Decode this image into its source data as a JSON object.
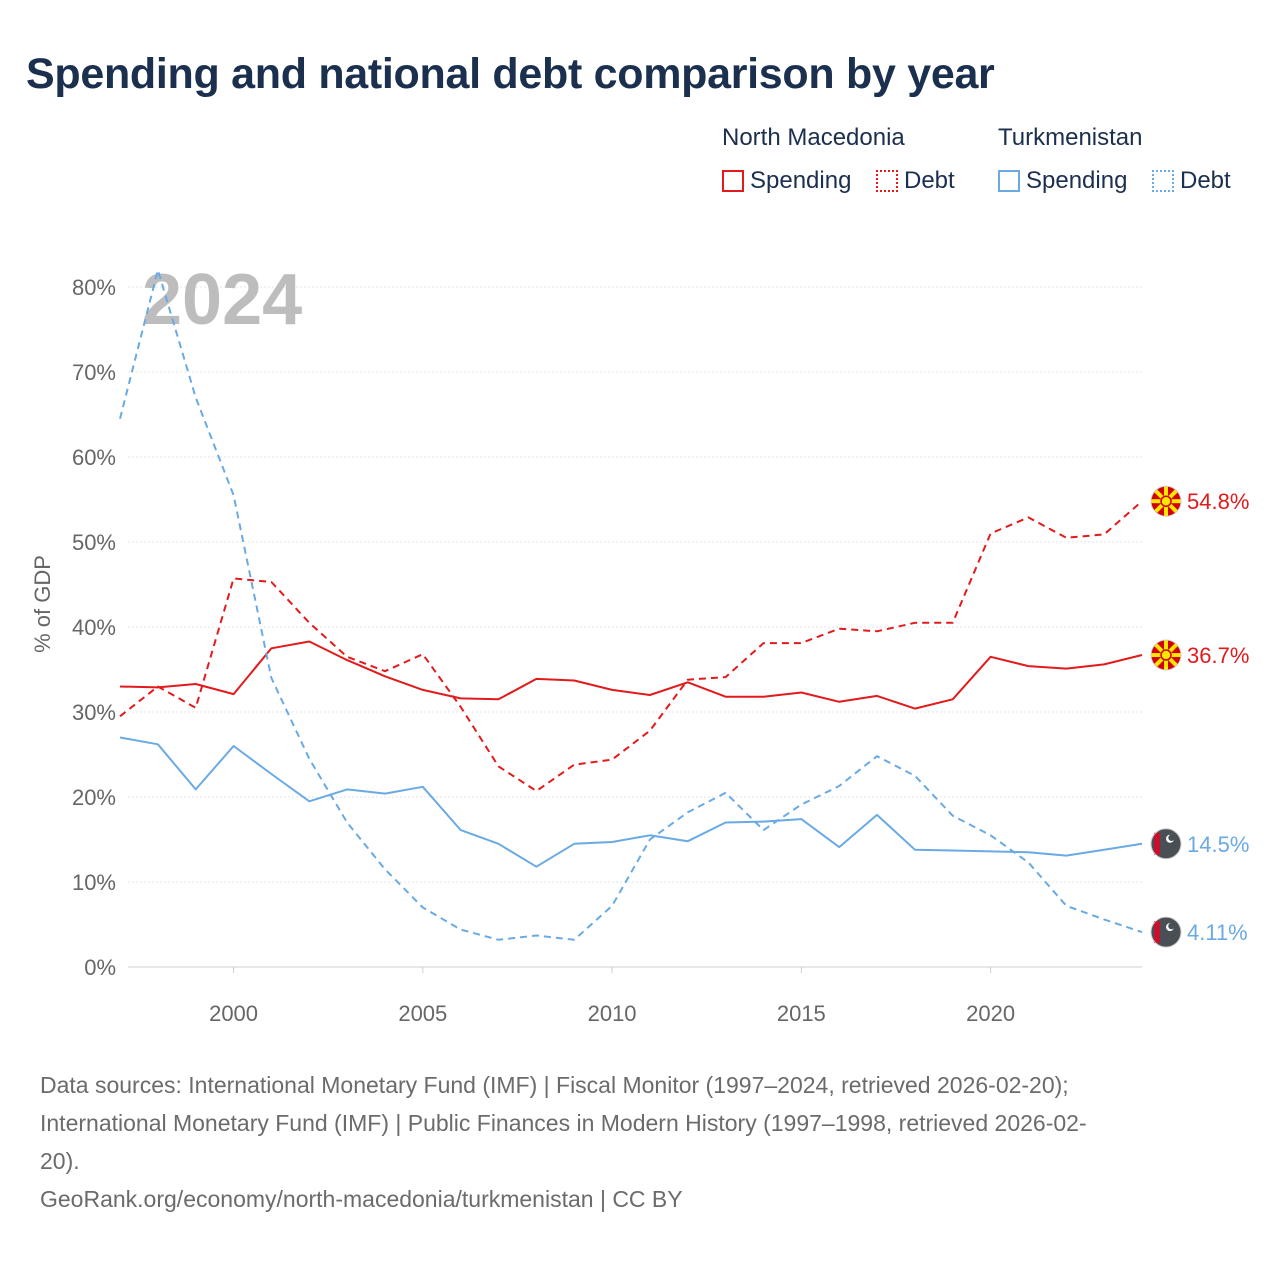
{
  "title": "Spending and national debt comparison by year",
  "legend": {
    "groups": [
      {
        "name": "North Macedonia",
        "color": "#e31a1c",
        "items": [
          {
            "label": "Spending",
            "style": "solid"
          },
          {
            "label": "Debt",
            "style": "dotted"
          }
        ]
      },
      {
        "name": "Turkmenistan",
        "color": "#6aaae4",
        "items": [
          {
            "label": "Spending",
            "style": "solid"
          },
          {
            "label": "Debt",
            "style": "dotted"
          }
        ]
      }
    ]
  },
  "chart_data": {
    "type": "line",
    "year_label": "2024",
    "ylabel": "% of GDP",
    "xlim": [
      1997,
      2024
    ],
    "ylim": [
      0,
      80
    ],
    "yticks": [
      0,
      10,
      20,
      30,
      40,
      50,
      60,
      70,
      80
    ],
    "ytick_labels": [
      "0%",
      "10%",
      "20%",
      "30%",
      "40%",
      "50%",
      "60%",
      "70%",
      "80%"
    ],
    "xticks": [
      2000,
      2005,
      2010,
      2015,
      2020
    ],
    "xtick_labels": [
      "2000",
      "2005",
      "2010",
      "2015",
      "2020"
    ],
    "series": [
      {
        "name": "North Macedonia Spending",
        "country": "North Macedonia",
        "color": "#e31a1c",
        "dash": false,
        "end_label": "36.7%",
        "x": [
          1997,
          1998,
          1999,
          2000,
          2001,
          2002,
          2003,
          2004,
          2005,
          2006,
          2007,
          2008,
          2009,
          2010,
          2011,
          2012,
          2013,
          2014,
          2015,
          2016,
          2017,
          2018,
          2019,
          2020,
          2021,
          2022,
          2023,
          2024
        ],
        "values": [
          33.0,
          32.9,
          33.3,
          32.1,
          37.5,
          38.3,
          36.1,
          34.2,
          32.6,
          31.6,
          31.5,
          33.9,
          33.7,
          32.6,
          32.0,
          33.5,
          31.8,
          31.8,
          32.3,
          31.2,
          31.9,
          30.4,
          31.5,
          36.5,
          35.4,
          35.1,
          35.6,
          36.7
        ]
      },
      {
        "name": "North Macedonia Debt",
        "country": "North Macedonia",
        "color": "#e31a1c",
        "dash": true,
        "end_label": "54.8%",
        "x": [
          1997,
          1998,
          1999,
          2000,
          2001,
          2002,
          2003,
          2004,
          2005,
          2006,
          2007,
          2008,
          2009,
          2010,
          2011,
          2012,
          2013,
          2014,
          2015,
          2016,
          2017,
          2018,
          2019,
          2020,
          2021,
          2022,
          2023,
          2024
        ],
        "values": [
          29.5,
          33.0,
          30.5,
          45.7,
          45.3,
          40.5,
          36.5,
          34.8,
          36.8,
          30.6,
          23.6,
          20.7,
          23.8,
          24.4,
          27.8,
          33.8,
          34.1,
          38.1,
          38.1,
          39.8,
          39.5,
          40.5,
          40.5,
          51.0,
          52.9,
          50.5,
          50.9,
          54.8
        ]
      },
      {
        "name": "Turkmenistan Spending",
        "country": "Turkmenistan",
        "color": "#6aaae4",
        "dash": false,
        "end_label": "14.5%",
        "x": [
          1997,
          1998,
          1999,
          2000,
          2001,
          2002,
          2003,
          2004,
          2005,
          2006,
          2007,
          2008,
          2009,
          2010,
          2011,
          2012,
          2013,
          2014,
          2015,
          2016,
          2017,
          2018,
          2019,
          2020,
          2021,
          2022,
          2023,
          2024
        ],
        "values": [
          27.0,
          26.2,
          20.9,
          26.0,
          22.7,
          19.5,
          20.9,
          20.4,
          21.2,
          16.1,
          14.5,
          11.8,
          14.5,
          14.7,
          15.5,
          14.8,
          17.0,
          17.1,
          17.4,
          14.1,
          17.9,
          13.8,
          13.7,
          13.6,
          13.5,
          13.1,
          13.8,
          14.5
        ]
      },
      {
        "name": "Turkmenistan Debt",
        "country": "Turkmenistan",
        "color": "#6aaae4",
        "dash": true,
        "end_label": "4.11%",
        "x": [
          1997,
          1998,
          1999,
          2000,
          2001,
          2002,
          2003,
          2004,
          2005,
          2006,
          2007,
          2008,
          2009,
          2010,
          2011,
          2012,
          2013,
          2014,
          2015,
          2016,
          2017,
          2018,
          2019,
          2020,
          2021,
          2022,
          2023,
          2024
        ],
        "values": [
          64.5,
          82.0,
          67.0,
          55.5,
          34.0,
          24.5,
          17.0,
          11.5,
          7.0,
          4.4,
          3.2,
          3.7,
          3.2,
          7.2,
          15.0,
          18.2,
          20.5,
          16.1,
          19.1,
          21.3,
          24.8,
          22.5,
          17.8,
          15.5,
          12.3,
          7.2,
          5.6,
          4.11
        ]
      }
    ]
  },
  "footer": {
    "sources_line1": "Data sources: International Monetary Fund (IMF) | Fiscal Monitor (1997–2024, retrieved 2026-02-20);",
    "sources_line2": "International Monetary Fund (IMF) | Public Finances in Modern History (1997–1998, retrieved 2026-02-",
    "sources_line3": "20).",
    "url": "GeoRank.org/economy/north-macedonia/turkmenistan | CC BY"
  }
}
